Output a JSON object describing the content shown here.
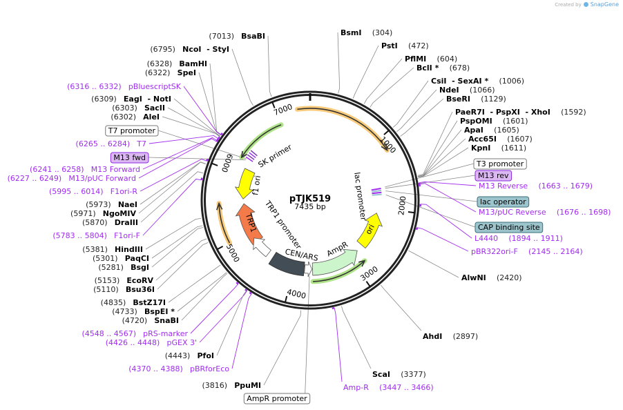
{
  "header": {
    "created_by": "Created by",
    "brand": "SnapGene"
  },
  "plasmid": {
    "name": "pTJK519",
    "length_label": "7435 bp",
    "length": 7435
  },
  "ticks": [
    "1000",
    "2000",
    "3000",
    "4000",
    "5000",
    "6000",
    "7000"
  ],
  "features": {
    "sk_primer": "SK primer",
    "f1_ori": "f1 ori",
    "trp1": "TRP1",
    "trp1_promoter": "TRP1 promoter",
    "cen_ars": "CEN/ARS",
    "ampr": "AmpR",
    "ori": "ori",
    "lac_promoter": "lac promoter"
  },
  "colors": {
    "primer": "#a12bf0",
    "orange_arc": "#f7c46c",
    "green_arc": "#a6e07a",
    "f1_ori": "#ffff00",
    "trp1": "#f47a4a",
    "cen_ars": "#434d56",
    "ampr": "#ccf5cc",
    "feature_purple": "#dcb8f2",
    "feature_teal": "#9cc4cc"
  },
  "labels": [
    {
      "kind": "enzyme",
      "pos": "(7013)",
      "name": "BsaBI",
      "bp": 7013
    },
    {
      "kind": "enzyme",
      "pos": "(6795)",
      "name": "NcoI  - StyI",
      "bp": 6795
    },
    {
      "kind": "enzyme",
      "pos": "(6328)",
      "name": "BamHI",
      "bp": 6328
    },
    {
      "kind": "enzyme",
      "pos": "(6322)",
      "name": "SpeI",
      "bp": 6322
    },
    {
      "kind": "primer",
      "pos": "(6316 .. 6332)",
      "name": "pBluescriptSK",
      "bp": 6324
    },
    {
      "kind": "enzyme",
      "pos": "(6309)",
      "name": "EagI  - NotI",
      "bp": 6309
    },
    {
      "kind": "enzyme",
      "pos": "(6303)",
      "name": "SacII",
      "bp": 6303
    },
    {
      "kind": "enzyme",
      "pos": "(6302)",
      "name": "AleI",
      "bp": 6302
    },
    {
      "kind": "feature",
      "name": "T7 promoter",
      "style": "plain"
    },
    {
      "kind": "primer",
      "pos": "(6265 .. 6284)",
      "name": "T7",
      "bp": 6275
    },
    {
      "kind": "feature",
      "name": "M13 fwd",
      "style": "purple"
    },
    {
      "kind": "primer",
      "pos": "(6241 .. 6258)",
      "name": "M13 Forward",
      "bp": 6250
    },
    {
      "kind": "primer",
      "pos": "(6227 .. 6249)",
      "name": "M13/pUC Forward",
      "bp": 6238
    },
    {
      "kind": "primer",
      "pos": "(5995 .. 6014)",
      "name": "F1ori-R",
      "bp": 6005
    },
    {
      "kind": "enzyme",
      "pos": "(5973)",
      "name": "NaeI",
      "bp": 5973
    },
    {
      "kind": "enzyme",
      "pos": "(5971)",
      "name": "NgoMIV",
      "bp": 5971
    },
    {
      "kind": "enzyme",
      "pos": "(5870)",
      "name": "DraIII",
      "bp": 5870
    },
    {
      "kind": "primer",
      "pos": "(5783 .. 5804)",
      "name": "F1ori-F",
      "bp": 5793
    },
    {
      "kind": "enzyme",
      "pos": "(5381)",
      "name": "HindIII",
      "bp": 5381
    },
    {
      "kind": "enzyme",
      "pos": "(5301)",
      "name": "PaqCI",
      "bp": 5301
    },
    {
      "kind": "enzyme",
      "pos": "(5281)",
      "name": "BsgI",
      "bp": 5281
    },
    {
      "kind": "enzyme",
      "pos": "(5153)",
      "name": "EcoRV",
      "bp": 5153
    },
    {
      "kind": "enzyme",
      "pos": "(5110)",
      "name": "Bsu36I",
      "bp": 5110
    },
    {
      "kind": "enzyme",
      "pos": "(4835)",
      "name": "BstZ17I",
      "bp": 4835
    },
    {
      "kind": "enzyme",
      "pos": "(4733)",
      "name": "BspEI *",
      "bp": 4733
    },
    {
      "kind": "enzyme",
      "pos": "(4720)",
      "name": "SnaBI",
      "bp": 4720
    },
    {
      "kind": "primer",
      "pos": "(4548 .. 4567)",
      "name": "pRS-marker",
      "bp": 4557
    },
    {
      "kind": "primer",
      "pos": "(4426 .. 4448)",
      "name": "pGEX 3'",
      "bp": 4437
    },
    {
      "kind": "enzyme",
      "pos": "(4443)",
      "name": "PfoI",
      "bp": 4443
    },
    {
      "kind": "primer",
      "pos": "(4370 .. 4388)",
      "name": "pBRforEco",
      "bp": 4379
    },
    {
      "kind": "enzyme",
      "pos": "(3816)",
      "name": "PpuMI",
      "bp": 3816
    },
    {
      "kind": "feature",
      "name": "AmpR promoter",
      "style": "plain"
    },
    {
      "kind": "enzyme",
      "pos": "(304)",
      "name": "BsmI",
      "bp": 304
    },
    {
      "kind": "enzyme",
      "pos": "(472)",
      "name": "PstI",
      "bp": 472
    },
    {
      "kind": "enzyme",
      "pos": "(604)",
      "name": "PflMI",
      "bp": 604
    },
    {
      "kind": "enzyme",
      "pos": "(678)",
      "name": "BclI *",
      "bp": 678
    },
    {
      "kind": "enzyme",
      "pos": "(1006)",
      "name": "CsiI  - SexAI *",
      "bp": 1006
    },
    {
      "kind": "enzyme",
      "pos": "(1066)",
      "name": "NdeI",
      "bp": 1066
    },
    {
      "kind": "enzyme",
      "pos": "(1129)",
      "name": "BseRI",
      "bp": 1129
    },
    {
      "kind": "enzyme",
      "pos": "(1592)",
      "name": "PaeR7I  - PspXI  - XhoI",
      "bp": 1592
    },
    {
      "kind": "enzyme",
      "pos": "(1601)",
      "name": "PspOMI",
      "bp": 1601
    },
    {
      "kind": "enzyme",
      "pos": "(1605)",
      "name": "ApaI",
      "bp": 1605
    },
    {
      "kind": "enzyme",
      "pos": "(1607)",
      "name": "Acc65I",
      "bp": 1607
    },
    {
      "kind": "enzyme",
      "pos": "(1611)",
      "name": "KpnI",
      "bp": 1611
    },
    {
      "kind": "feature",
      "name": "T3 promoter",
      "style": "plain"
    },
    {
      "kind": "feature",
      "name": "M13 rev",
      "style": "purple"
    },
    {
      "kind": "primer",
      "pos": "(1663 .. 1679)",
      "name": "M13 Reverse",
      "bp": 1671
    },
    {
      "kind": "feature",
      "name": "lac operator",
      "style": "teal"
    },
    {
      "kind": "primer",
      "pos": "(1676 .. 1698)",
      "name": "M13/pUC Reverse",
      "bp": 1687
    },
    {
      "kind": "feature",
      "name": "CAP binding site",
      "style": "teal"
    },
    {
      "kind": "primer",
      "pos": "(1894 .. 1911)",
      "name": "L4440",
      "bp": 1902
    },
    {
      "kind": "primer",
      "pos": "(2145 .. 2164)",
      "name": "pBR322ori-F",
      "bp": 2155
    },
    {
      "kind": "enzyme",
      "pos": "(2420)",
      "name": "AlwNI",
      "bp": 2420
    },
    {
      "kind": "enzyme",
      "pos": "(2897)",
      "name": "AhdI",
      "bp": 2897
    },
    {
      "kind": "enzyme",
      "pos": "(3377)",
      "name": "ScaI",
      "bp": 3377
    },
    {
      "kind": "primer",
      "pos": "(3447 .. 3466)",
      "name": "Amp-R",
      "bp": 3456
    }
  ]
}
